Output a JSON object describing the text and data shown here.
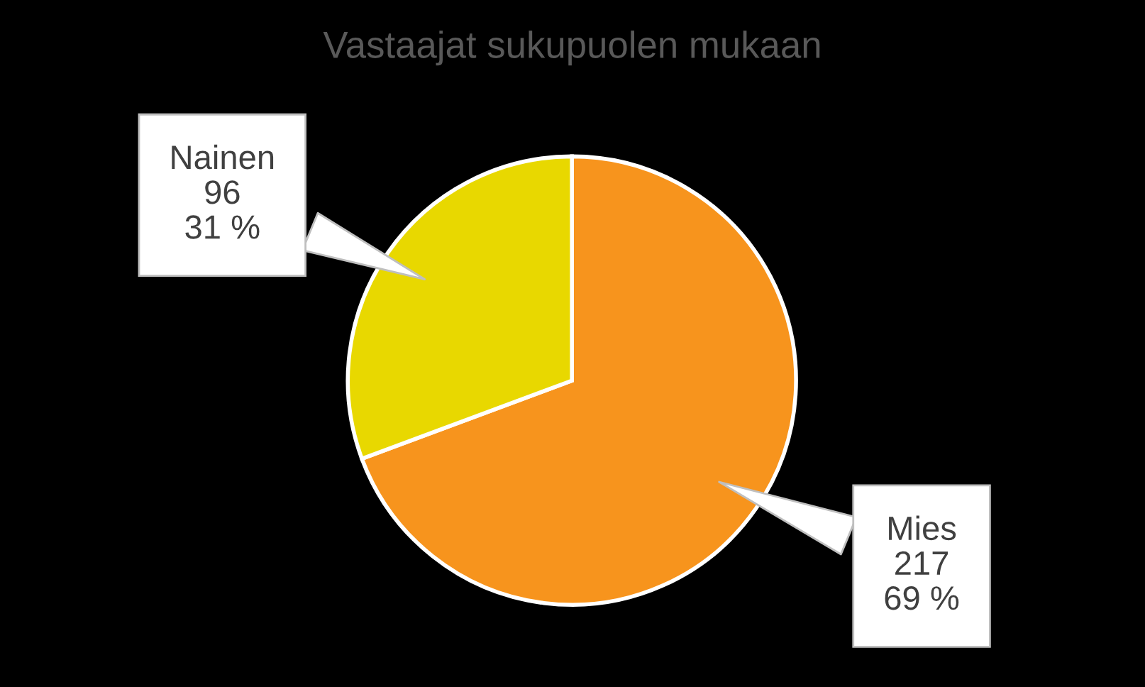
{
  "chart_data": {
    "type": "pie",
    "title": "Vastaajat sukupuolen mukaan",
    "categories": [
      "Mies",
      "Nainen"
    ],
    "values": [
      217,
      96
    ],
    "colors": [
      "#f7941d",
      "#e8d800"
    ],
    "value_labels": [
      "217\n69 %",
      "96\n31 %"
    ],
    "legend": false
  }
}
